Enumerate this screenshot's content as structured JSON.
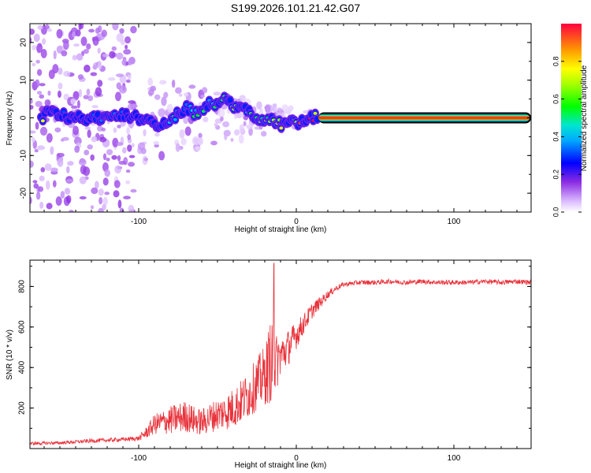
{
  "title": "S199.2026.101.21.42.G07",
  "chart_data": [
    {
      "type": "heatmap",
      "name": "spectrogram",
      "xlabel": "Height of straight line (km)",
      "ylabel": "Frequency (Hz)",
      "xlim": [
        -169,
        149
      ],
      "ylim": [
        -25,
        25
      ],
      "xticks": [
        -100,
        0,
        100
      ],
      "xtick_labels": [
        "-100",
        "0",
        "100"
      ],
      "yticks": [
        20,
        10,
        0,
        -10,
        -20
      ],
      "ytick_labels": [
        "20",
        "10",
        "0",
        "-10",
        "-20"
      ],
      "colorbar": {
        "label": "Normalized spectral amplitude",
        "range": [
          0,
          1
        ],
        "ticks": [
          0.0,
          0.2,
          0.4,
          0.6,
          0.8
        ],
        "tick_labels": [
          "0.0",
          "0.2",
          "0.4",
          "0.6",
          "0.8"
        ]
      },
      "ridge": {
        "x": [
          -160,
          -150,
          -140,
          -130,
          -120,
          -110,
          -100,
          -90,
          -85,
          -80,
          -75,
          -70,
          -65,
          -60,
          -55,
          -50,
          -45,
          -40,
          -35,
          -30,
          -25,
          -20,
          -15,
          -10,
          -5,
          0,
          5,
          10,
          15,
          30,
          60,
          100,
          149
        ],
        "frequency": [
          1.5,
          0.5,
          0,
          0,
          0.5,
          0.5,
          0,
          -2,
          -1,
          0,
          1,
          3,
          1,
          2,
          4,
          3,
          5,
          3,
          3.5,
          2,
          0,
          -0.5,
          0,
          -2,
          -1,
          -1,
          -1,
          0,
          0,
          0,
          0,
          0,
          0
        ],
        "amplitude": [
          0.25,
          0.3,
          0.3,
          0.35,
          0.3,
          0.3,
          0.35,
          0.4,
          0.4,
          0.45,
          0.5,
          0.45,
          0.5,
          0.45,
          0.5,
          0.5,
          0.55,
          0.6,
          0.55,
          0.55,
          0.6,
          0.65,
          0.7,
          0.8,
          0.85,
          0.85,
          0.9,
          0.95,
          1.0,
          1.0,
          1.0,
          1.0,
          1.0
        ]
      }
    },
    {
      "type": "line",
      "name": "snr",
      "xlabel": "Height of straight line (km)",
      "ylabel": "SNR (10 * v/v)",
      "xlim": [
        -169,
        149
      ],
      "ylim": [
        0,
        930
      ],
      "xticks": [
        -100,
        0,
        100
      ],
      "xtick_labels": [
        "-100",
        "0",
        "100"
      ],
      "yticks": [
        200,
        400,
        600,
        800
      ],
      "ytick_labels": [
        "200",
        "400",
        "600",
        "800"
      ],
      "color": "#e8323a",
      "series": [
        {
          "name": "SNR",
          "x": [
            -169,
            -150,
            -130,
            -110,
            -100,
            -95,
            -90,
            -85,
            -80,
            -75,
            -70,
            -65,
            -60,
            -55,
            -50,
            -45,
            -40,
            -35,
            -30,
            -25,
            -20,
            -17,
            -15,
            -13,
            -10,
            -5,
            0,
            5,
            10,
            15,
            20,
            25,
            30,
            40,
            50,
            60,
            70,
            80,
            90,
            100,
            110,
            120,
            130,
            140,
            149
          ],
          "y": [
            25,
            28,
            38,
            45,
            50,
            80,
            120,
            130,
            140,
            150,
            160,
            140,
            130,
            150,
            170,
            180,
            200,
            230,
            270,
            320,
            360,
            420,
            480,
            420,
            460,
            500,
            560,
            620,
            680,
            720,
            760,
            790,
            810,
            820,
            820,
            825,
            820,
            825,
            820,
            820,
            820,
            825,
            820,
            825,
            820
          ],
          "noise": [
            8,
            8,
            10,
            10,
            12,
            30,
            50,
            60,
            70,
            75,
            80,
            70,
            65,
            75,
            80,
            90,
            100,
            110,
            120,
            130,
            150,
            200,
            250,
            150,
            100,
            90,
            70,
            50,
            40,
            30,
            20,
            15,
            12,
            12,
            12,
            12,
            12,
            12,
            12,
            12,
            12,
            12,
            12,
            12,
            12
          ]
        }
      ]
    }
  ]
}
